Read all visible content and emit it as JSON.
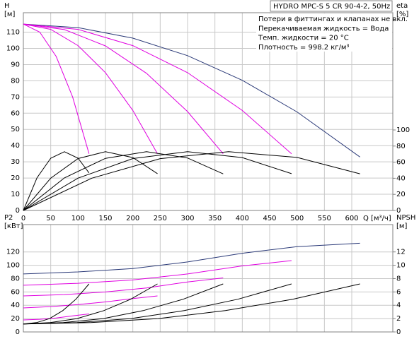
{
  "chart_data": [
    {
      "type": "line",
      "title": "HYDRO MPC-S 5 CR 90-4-2, 50Hz",
      "notes": [
        "Потери в фиттингах и клапанах не вкл.",
        "Перекачиваемая жидкость = Вода",
        "Темп. жидкости = 20 °C",
        "Плотность = 998.2 кг/м³"
      ],
      "xlabel": "Q [м³/ч]",
      "ylabel": "H",
      "yunit": "[м]",
      "y2label": "eta",
      "y2unit": "[%]",
      "xlim": [
        0,
        675
      ],
      "xticks": [
        0,
        50,
        100,
        150,
        200,
        250,
        300,
        350,
        400,
        450,
        500,
        550,
        600
      ],
      "ylim": [
        0,
        122
      ],
      "yticks": [
        0,
        10,
        20,
        30,
        40,
        50,
        60,
        70,
        80,
        90,
        100,
        110
      ],
      "y2lim": [
        0,
        245.6
      ],
      "y2ticks": [
        0,
        20,
        40,
        60,
        80,
        100
      ],
      "grid": true,
      "series": [
        {
          "color": "#2b3a78",
          "x": [
            0,
            100,
            200,
            300,
            400,
            500,
            615
          ],
          "values": [
            115,
            112.8,
            106.3,
            95.5,
            80.3,
            60.8,
            33
          ]
        },
        {
          "color": "#e000e0",
          "x": [
            0,
            100,
            200,
            300,
            400,
            490
          ],
          "values": [
            115,
            111.7,
            101.7,
            85,
            61.7,
            35
          ]
        },
        {
          "color": "#e000e0",
          "x": [
            0,
            75,
            150,
            225,
            300,
            365
          ],
          "values": [
            115,
            111.6,
            101.5,
            84.6,
            61,
            35
          ]
        },
        {
          "color": "#e000e0",
          "x": [
            0,
            50,
            100,
            150,
            200,
            245
          ],
          "values": [
            115,
            111.7,
            101.7,
            85,
            61.7,
            35
          ]
        },
        {
          "color": "#e000e0",
          "x": [
            0,
            30,
            60,
            90,
            120
          ],
          "values": [
            115,
            110,
            95,
            70,
            35
          ]
        },
        {
          "color": "#000000",
          "axis": "y2",
          "x": [
            0,
            25,
            50,
            75,
            100,
            120
          ],
          "values": [
            0,
            40.6,
            64.9,
            73,
            64.9,
            46.7
          ]
        },
        {
          "color": "#000000",
          "axis": "y2",
          "x": [
            0,
            50,
            100,
            150,
            200,
            245
          ],
          "values": [
            0,
            40.2,
            64.5,
            73,
            65.7,
            45.7
          ]
        },
        {
          "color": "#000000",
          "axis": "y2",
          "x": [
            0,
            75,
            150,
            225,
            300,
            365
          ],
          "values": [
            0,
            40.4,
            64.7,
            73,
            65.2,
            45.4
          ]
        },
        {
          "color": "#000000",
          "axis": "y2",
          "x": [
            0,
            100,
            200,
            300,
            400,
            490
          ],
          "values": [
            0,
            40.2,
            64.5,
            73,
            65.7,
            45.7
          ]
        },
        {
          "color": "#000000",
          "axis": "y2",
          "x": [
            0,
            125,
            250,
            375,
            500,
            615
          ],
          "values": [
            0,
            40.1,
            64.4,
            73,
            65.9,
            45.5
          ]
        }
      ]
    },
    {
      "type": "line",
      "ylabel": "P2",
      "yunit": "[кВт]",
      "y2label": "NPSH",
      "y2unit": "[м]",
      "xlim": [
        0,
        675
      ],
      "ylim": [
        0,
        161
      ],
      "yticks": [
        0,
        20,
        40,
        60,
        80,
        100,
        120
      ],
      "y2lim": [
        0,
        16.1
      ],
      "y2ticks": [
        0,
        2,
        4,
        6,
        8,
        10,
        12
      ],
      "grid": true,
      "series": [
        {
          "color": "#2b3a78",
          "x": [
            0,
            100,
            200,
            300,
            400,
            500,
            615
          ],
          "values": [
            87,
            90,
            95,
            105,
            118,
            128,
            133
          ]
        },
        {
          "color": "#e000e0",
          "x": [
            0,
            100,
            200,
            300,
            400,
            490
          ],
          "values": [
            70,
            73,
            78,
            87,
            99,
            107
          ]
        },
        {
          "color": "#e000e0",
          "x": [
            0,
            75,
            150,
            225,
            300,
            365
          ],
          "values": [
            54,
            56,
            60,
            66,
            75,
            81
          ]
        },
        {
          "color": "#e000e0",
          "x": [
            0,
            50,
            100,
            150,
            200,
            245
          ],
          "values": [
            36,
            38,
            41,
            45,
            50,
            54
          ]
        },
        {
          "color": "#e000e0",
          "x": [
            0,
            30,
            60,
            90,
            120
          ],
          "values": [
            18,
            19,
            21,
            24,
            27
          ]
        },
        {
          "color": "#000000",
          "axis": "y2",
          "x": [
            0,
            24,
            48,
            72,
            96,
            120
          ],
          "values": [
            1.2,
            1.4,
            2.0,
            3.2,
            4.9,
            7.2
          ]
        },
        {
          "color": "#000000",
          "axis": "y2",
          "x": [
            0,
            49,
            98,
            147,
            196,
            245
          ],
          "values": [
            1.2,
            1.4,
            2.0,
            3.2,
            4.9,
            7.2
          ]
        },
        {
          "color": "#000000",
          "axis": "y2",
          "x": [
            0,
            73,
            146,
            219,
            292,
            365
          ],
          "values": [
            1.2,
            1.4,
            2.0,
            3.2,
            4.9,
            7.2
          ]
        },
        {
          "color": "#000000",
          "axis": "y2",
          "x": [
            0,
            98,
            196,
            294,
            392,
            490
          ],
          "values": [
            1.2,
            1.4,
            2.0,
            3.2,
            4.9,
            7.2
          ]
        },
        {
          "color": "#000000",
          "axis": "y2",
          "x": [
            0,
            123,
            246,
            369,
            492,
            615
          ],
          "values": [
            1.2,
            1.4,
            2.0,
            3.2,
            4.9,
            7.2
          ]
        }
      ]
    }
  ]
}
